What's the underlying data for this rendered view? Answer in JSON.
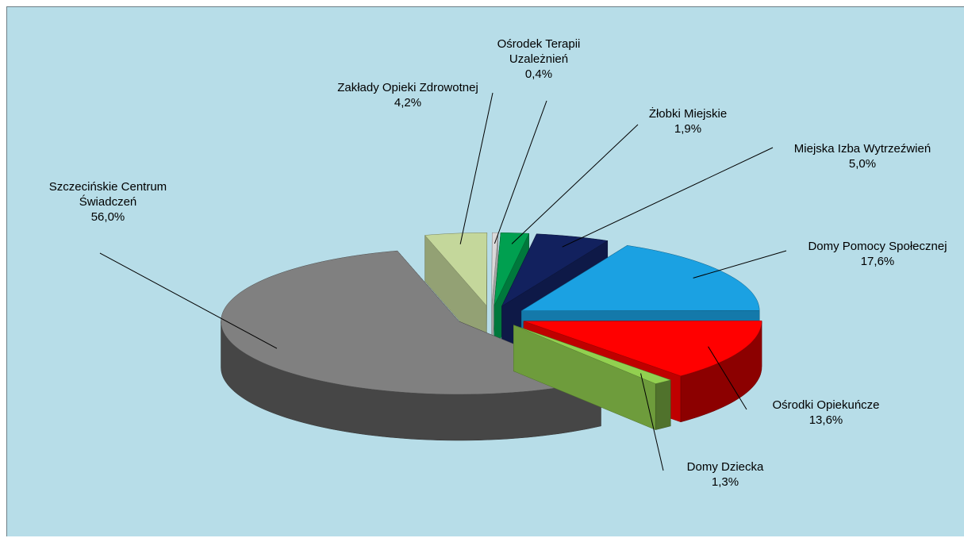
{
  "chart_data": {
    "type": "pie3d",
    "categories": [
      "Zakłady Opieki Zdrowotnej",
      "Ośrodek Terapii Uzależnień",
      "Żłobki Miejskie",
      "Miejska Izba Wytrzeźwień",
      "Domy Pomocy Społecznej",
      "Ośrodki Opiekuńcze",
      "Domy Dziecka",
      "Szczecińskie Centrum Świadczeń"
    ],
    "values": [
      4.2,
      0.4,
      1.9,
      5.0,
      17.6,
      13.6,
      1.3,
      56.0
    ],
    "value_labels": [
      "4,2%",
      "0,4%",
      "1,9%",
      "5,0%",
      "17,6%",
      "13,6%",
      "1,3%",
      "56,0%"
    ],
    "colors": [
      "#c4d79b",
      "#d9d9d9",
      "#00a050",
      "#12215e",
      "#1ba1e2",
      "#ff0000",
      "#92d050",
      "#808080"
    ]
  }
}
